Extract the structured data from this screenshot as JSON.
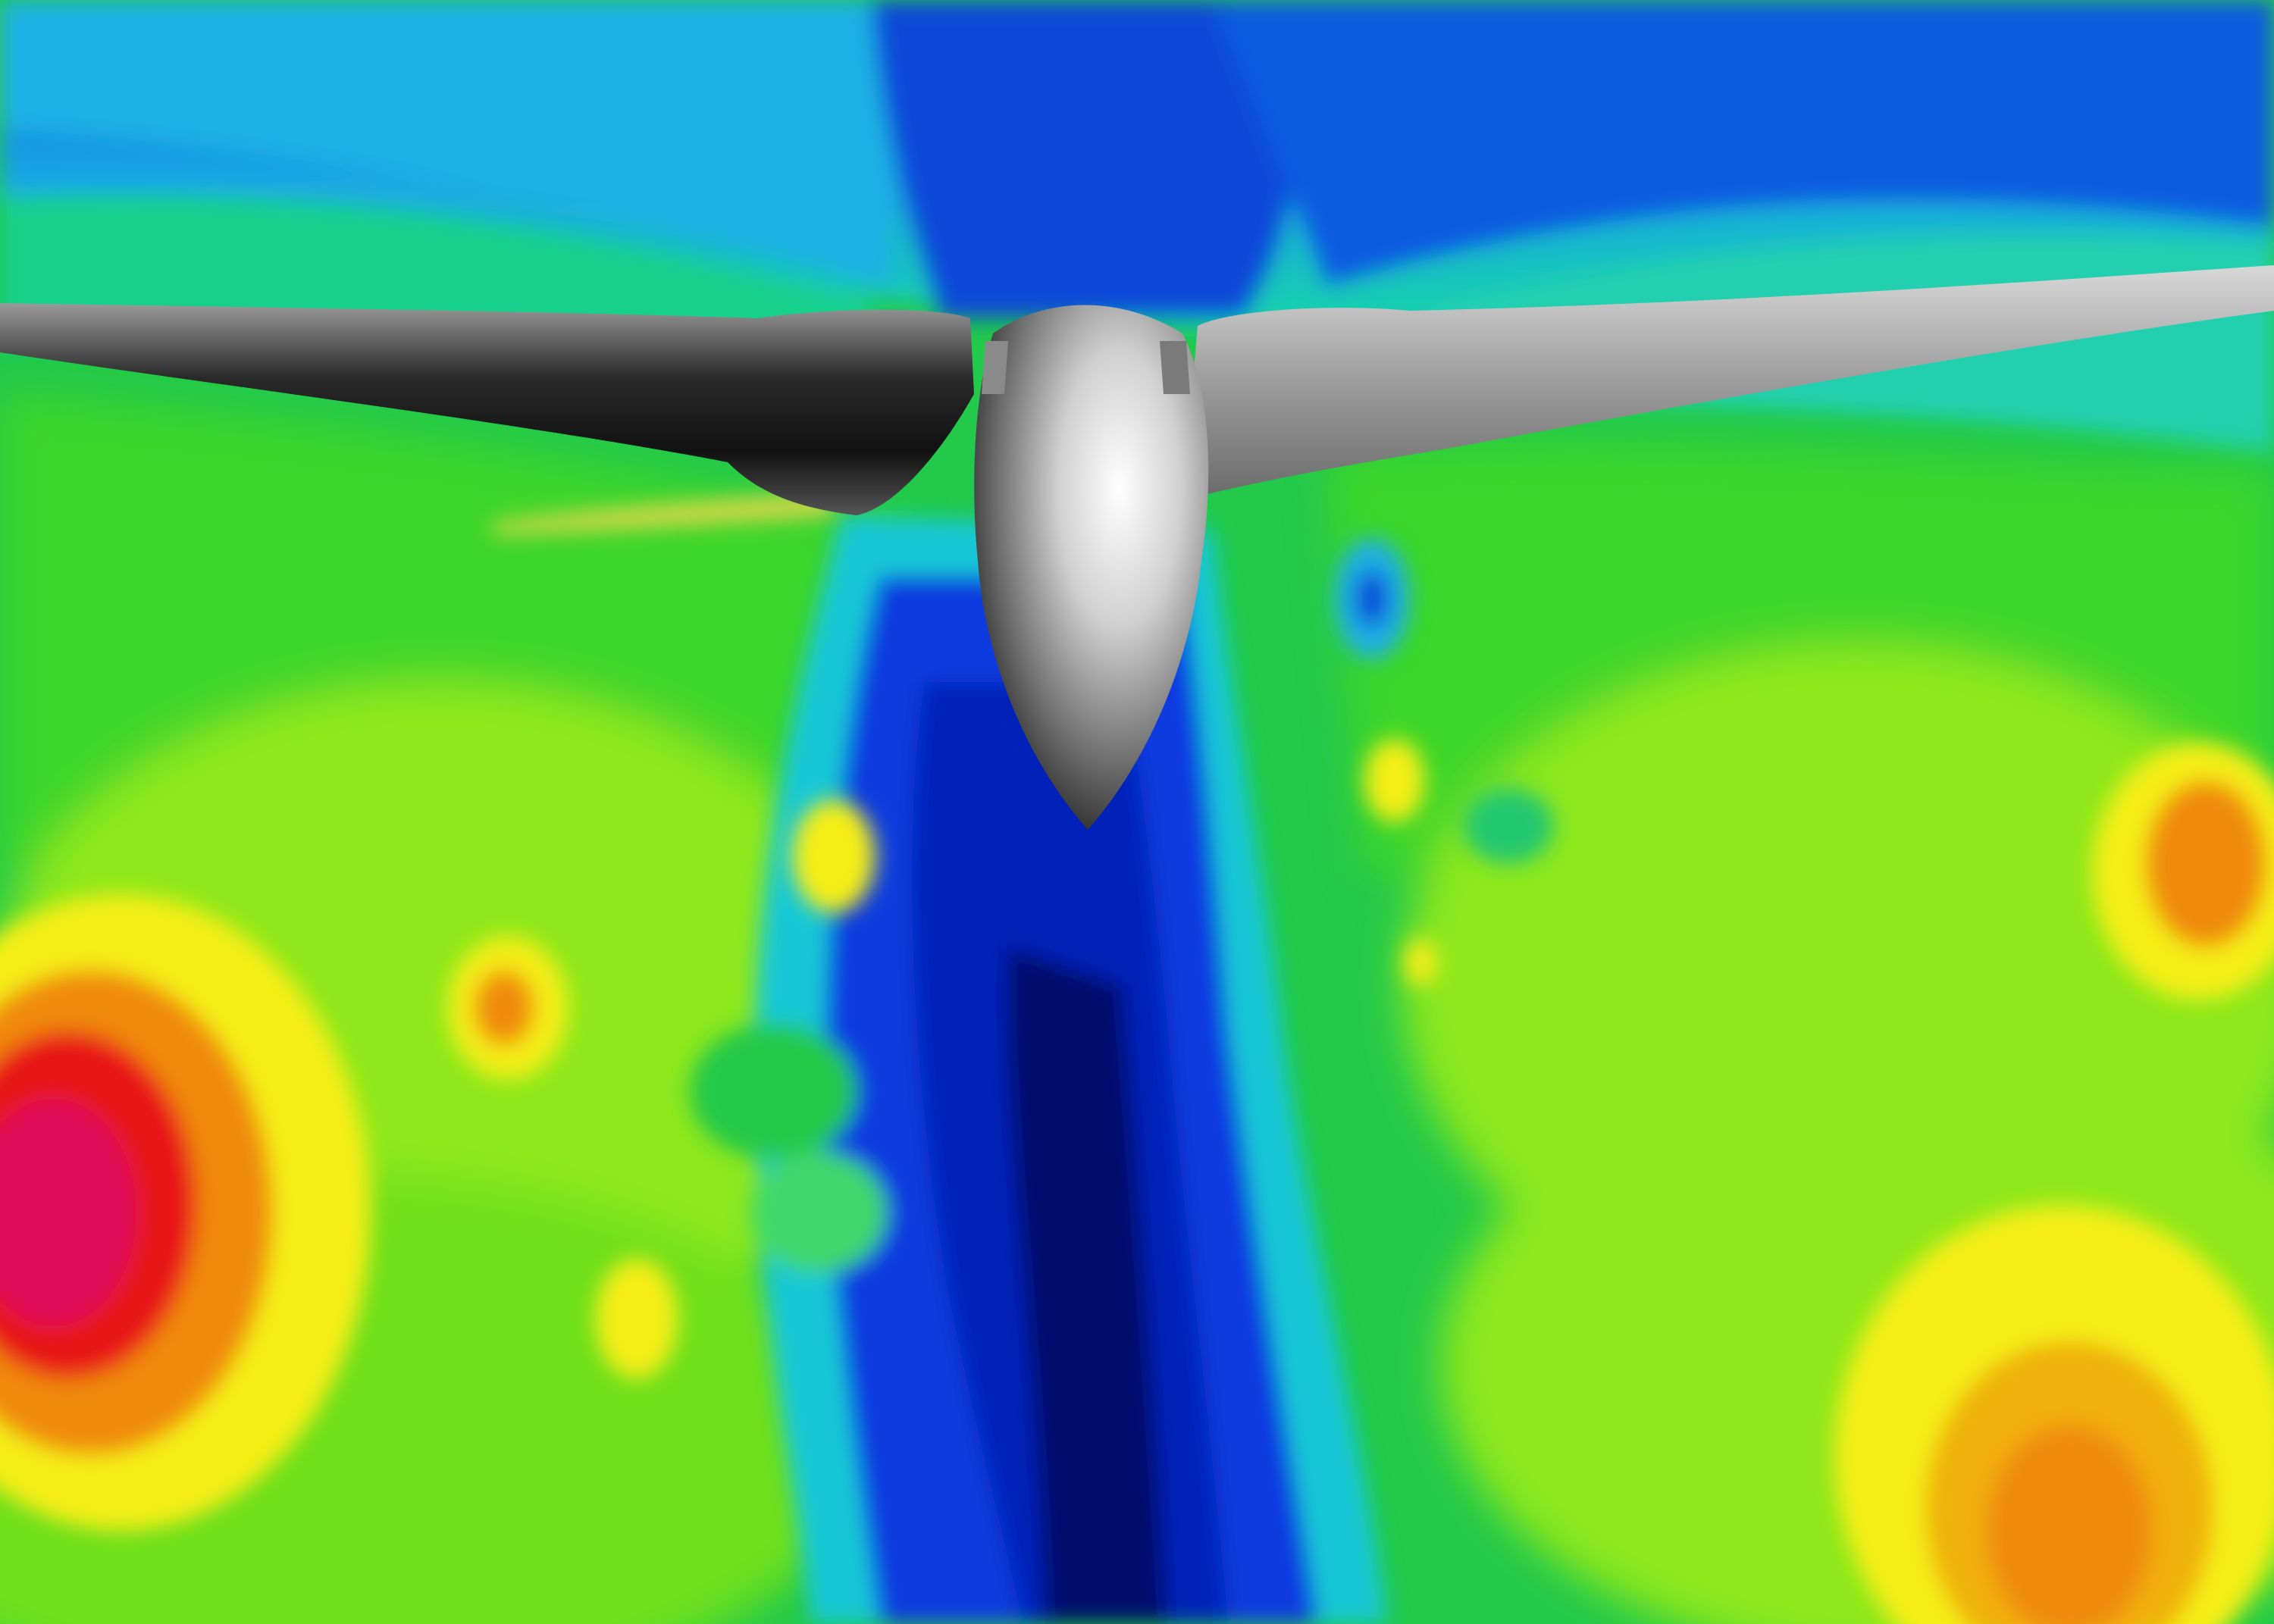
{
  "figure": {
    "kind": "CFD velocity contour around wind turbine rotor",
    "colors": {
      "background_green": "#22c94a",
      "sky_blue": "#0a5ee0",
      "cyan": "#1fc8e6",
      "teal": "#18d6a6",
      "wake_blue": "#0033d6",
      "wake_deep": "#000a6a",
      "yellow_green": "#8ee81a",
      "yellow": "#f4ee12",
      "orange": "#f08a0c",
      "red": "#e81818",
      "magenta": "#e0105a",
      "blade_dark": "#1a1a1a",
      "blade_light": "#e6e6e6"
    },
    "icons": [
      "turbine-hub",
      "turbine-blade"
    ]
  }
}
